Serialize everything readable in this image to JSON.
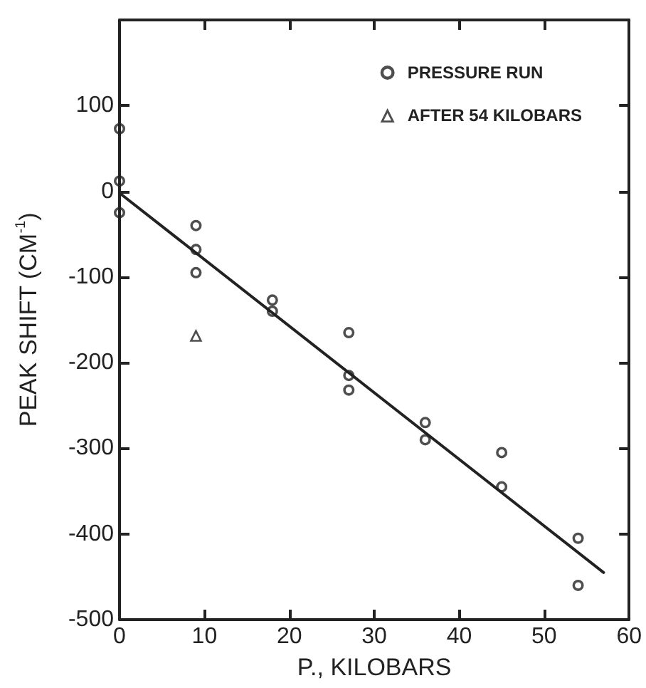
{
  "chart_data": {
    "type": "scatter",
    "xlabel": "P., KILOBARS",
    "ylabel": "PEAK SHIFT (CM$^{-1}$)",
    "xlim": [
      0,
      60
    ],
    "xticks": [
      0,
      10,
      20,
      30,
      40,
      50,
      60
    ],
    "ylim": [
      -500,
      200
    ],
    "yticks": [
      -500,
      -400,
      -300,
      -200,
      -100,
      0,
      100
    ],
    "grid": false,
    "legend": "top right",
    "series": [
      {
        "name": "PRESSURE RUN",
        "color": "#222222",
        "marker": "circle",
        "x": [
          0,
          0,
          0,
          9,
          9,
          9,
          18,
          18,
          27,
          27,
          27,
          36,
          36,
          45,
          45,
          54,
          54
        ],
        "values": [
          73,
          12,
          -25,
          -40,
          -68,
          -95,
          -127,
          -140,
          -165,
          -215,
          -232,
          -270,
          -290,
          -305,
          -345,
          -405,
          -460
        ]
      },
      {
        "name": "AFTER 54 KILOBARS",
        "color": "#222222",
        "marker": "triangle",
        "x": [
          9
        ],
        "values": [
          -168
        ]
      },
      {
        "type": "line",
        "color": "#222222",
        "marker": "none",
        "x": [
          0,
          57
        ],
        "values": [
          -2,
          -445
        ]
      }
    ]
  }
}
